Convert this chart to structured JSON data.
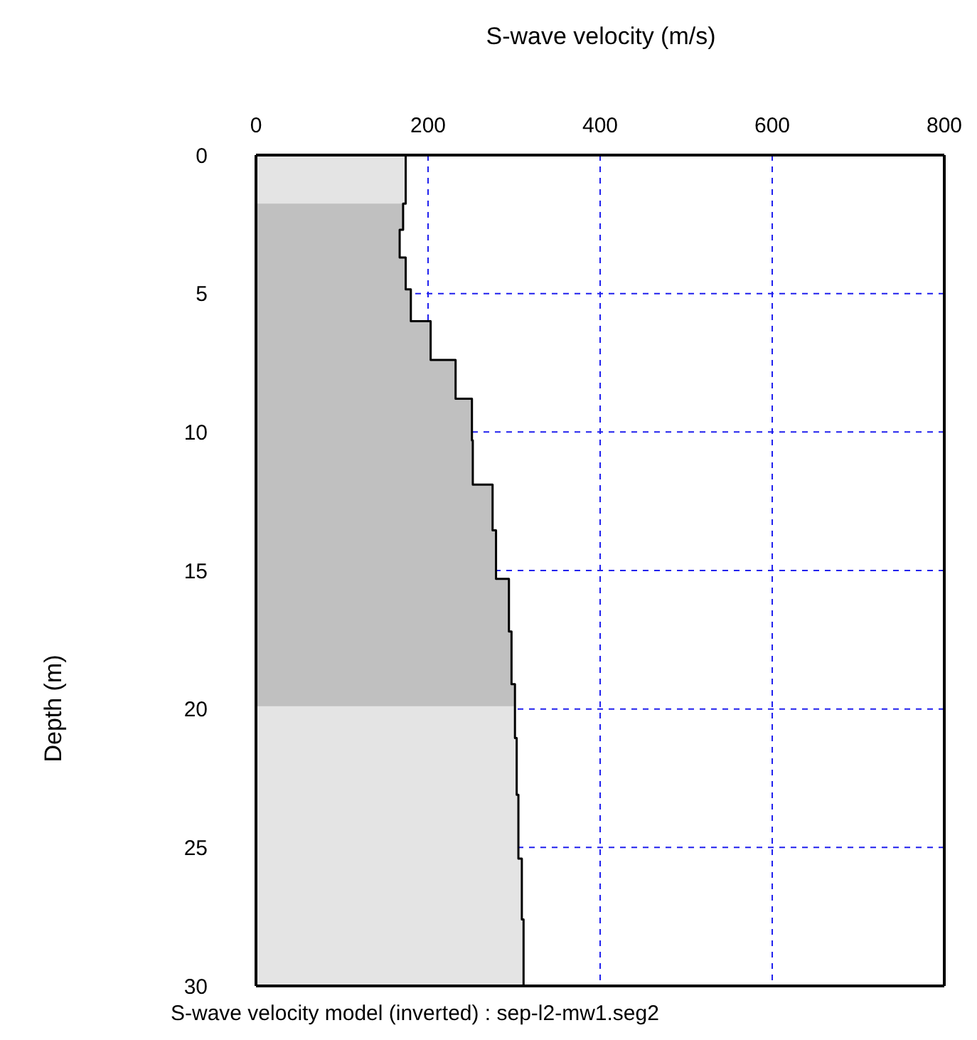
{
  "chart_data": {
    "type": "area",
    "xlabel": "S-wave velocity (m/s)",
    "ylabel": "Depth (m)",
    "annotations": [
      "S-wave velocity model (inverted) : sep-l2-mw1.seg2"
    ],
    "orientation": "horizontal",
    "x": [
      0,
      1.75,
      2.7,
      3.7,
      4.85,
      6.0,
      7.4,
      8.8,
      10.3,
      11.9,
      13.55,
      15.3,
      17.2,
      19.1,
      21.05,
      23.1,
      25.4,
      27.6,
      30
    ],
    "series": [
      {
        "color": "#e4e4e4",
        "values": [
          174,
          171,
          167,
          174,
          180,
          203,
          232,
          251,
          252,
          275,
          279,
          294,
          297,
          301,
          303,
          305,
          309,
          311,
          311
        ]
      },
      {
        "color": "#c0c0c0",
        "x": [
          1.75,
          2.7,
          3.7,
          4.85,
          6.0,
          7.4,
          8.8,
          10.3,
          11.9,
          13.55,
          15.3,
          17.2,
          19.1,
          19.9
        ],
        "values": [
          171,
          167,
          174,
          180,
          203,
          232,
          251,
          252,
          275,
          279,
          294,
          297,
          301,
          301
        ]
      },
      {
        "type": "step",
        "color": "#000000",
        "values": [
          174,
          171,
          167,
          174,
          180,
          203,
          232,
          251,
          252,
          275,
          279,
          294,
          297,
          301,
          303,
          305,
          309,
          311,
          311
        ]
      }
    ],
    "xlim": [
      0,
      800
    ],
    "xticks": [
      0,
      200,
      400,
      600,
      800
    ],
    "ylim": [
      30,
      0
    ],
    "yticks": [
      0,
      5,
      10,
      15,
      20,
      25,
      30
    ],
    "grid": true
  }
}
